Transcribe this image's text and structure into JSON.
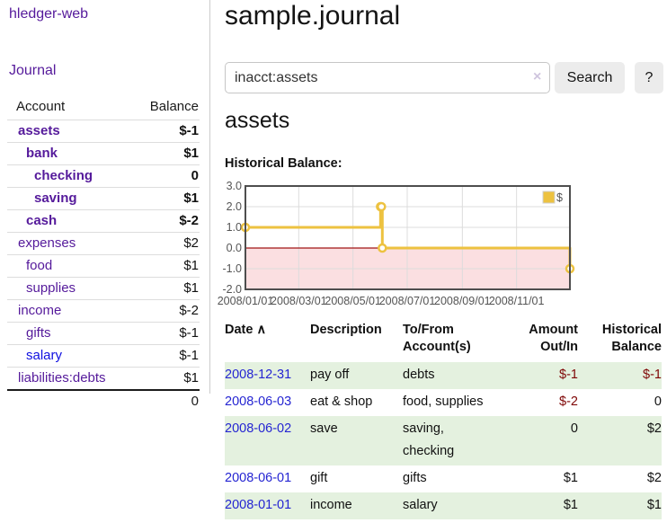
{
  "colors": {
    "link_purple": "#551a9b",
    "link_blue": "#0f0fe0",
    "date_blue": "#2525d2",
    "negative_red": "#7f0606",
    "negative_faded": "#b97575",
    "row_green": "#e4f1df",
    "series_gold": "#edc240",
    "negative_area_pink": "#fbdfe1",
    "zero_line_red": "#a01515",
    "grid_gray": "#dcdcdc",
    "chart_border": "#4e4e4e",
    "button_gray": "#ececec"
  },
  "sidebar": {
    "brand": "hledger-web",
    "journal_link": "Journal",
    "table": {
      "account_header": "Account",
      "balance_header": "Balance",
      "rows": [
        {
          "label": "assets",
          "indent": 1,
          "bold": true,
          "balance": "$-1",
          "balance_class": "neg"
        },
        {
          "label": "bank",
          "indent": 2,
          "bold": true,
          "balance": "$1",
          "balance_class": ""
        },
        {
          "label": "checking",
          "indent": 3,
          "bold": true,
          "balance": "0",
          "balance_class": ""
        },
        {
          "label": "saving",
          "indent": 3,
          "bold": true,
          "balance": "$1",
          "balance_class": ""
        },
        {
          "label": "cash",
          "indent": 2,
          "bold": true,
          "balance": "$-2",
          "balance_class": "neg"
        },
        {
          "label": "expenses",
          "indent": 1,
          "bold": false,
          "balance": "$2",
          "balance_class": ""
        },
        {
          "label": "food",
          "indent": 2,
          "bold": false,
          "balance": "$1",
          "balance_class": ""
        },
        {
          "label": "supplies",
          "indent": 2,
          "bold": false,
          "balance": "$1",
          "balance_class": ""
        },
        {
          "label": "income",
          "indent": 1,
          "bold": false,
          "balance": "$-2",
          "balance_class": "neg-faded"
        },
        {
          "label": "gifts",
          "indent": 2,
          "bold": false,
          "balance": "$-1",
          "balance_class": "neg-faded"
        },
        {
          "label": "salary",
          "indent": 2,
          "bold": false,
          "balance": "$-1",
          "balance_class": "neg-faded",
          "link_class": "blue"
        },
        {
          "label": "liabilities:debts",
          "indent": 1,
          "bold": false,
          "balance": "$1",
          "balance_class": ""
        }
      ],
      "total": "0"
    }
  },
  "main": {
    "title": "sample.journal",
    "search": {
      "value": "inacct:assets",
      "clear_icon": "×",
      "button_label": "Search",
      "help_label": "?"
    },
    "account_heading": "assets"
  },
  "chart_data": {
    "type": "line",
    "step": true,
    "title": "Historical Balance:",
    "legend": {
      "label": "$",
      "position": "top-right"
    },
    "ylim": [
      -2,
      3
    ],
    "yticks": [
      {
        "v": 3,
        "label": "3.0"
      },
      {
        "v": 2,
        "label": "2.0"
      },
      {
        "v": 1,
        "label": "1.0"
      },
      {
        "v": 0,
        "label": "0.0"
      },
      {
        "v": -1,
        "label": "-1.0"
      },
      {
        "v": -2,
        "label": "-2.0"
      }
    ],
    "x_domain_days": [
      0,
      365
    ],
    "xticks": [
      {
        "day": 0,
        "label": "2008/01/01"
      },
      {
        "day": 60,
        "label": "2008/03/01"
      },
      {
        "day": 121,
        "label": "2008/05/01"
      },
      {
        "day": 182,
        "label": "2008/07/01"
      },
      {
        "day": 244,
        "label": "2008/09/01"
      },
      {
        "day": 305,
        "label": "2008/11/01"
      }
    ],
    "series": [
      {
        "name": "$",
        "color": "#edc240",
        "points": [
          {
            "date": "2008-01-01",
            "day": 0,
            "value": 1
          },
          {
            "date": "2008-06-01",
            "day": 152,
            "value": 2
          },
          {
            "date": "2008-06-02",
            "day": 153,
            "value": 2
          },
          {
            "date": "2008-06-03",
            "day": 154,
            "value": 0
          },
          {
            "date": "2008-12-31",
            "day": 365,
            "value": -1
          }
        ]
      }
    ]
  },
  "transactions": {
    "headers": {
      "date": "Date",
      "sort_icon": "∧",
      "description": "Description",
      "tofrom_line1": "To/From",
      "tofrom_line2": "Account(s)",
      "amount_line1": "Amount",
      "amount_line2": "Out/In",
      "balance_line1": "Historical",
      "balance_line2": "Balance"
    },
    "rows": [
      {
        "date": "2008-12-31",
        "description": "pay off",
        "accounts": "debts",
        "amount": "$-1",
        "amount_negative": true,
        "balance": "$-1",
        "balance_negative": true
      },
      {
        "date": "2008-06-03",
        "description": "eat & shop",
        "accounts": "food, supplies",
        "amount": "$-2",
        "amount_negative": true,
        "balance": "0",
        "balance_negative": false
      },
      {
        "date": "2008-06-02",
        "description": "save",
        "accounts": "saving, checking",
        "amount": "0",
        "amount_negative": false,
        "balance": "$2",
        "balance_negative": false
      },
      {
        "date": "2008-06-01",
        "description": "gift",
        "accounts": "gifts",
        "amount": "$1",
        "amount_negative": false,
        "balance": "$2",
        "balance_negative": false
      },
      {
        "date": "2008-01-01",
        "description": "income",
        "accounts": "salary",
        "amount": "$1",
        "amount_negative": false,
        "balance": "$1",
        "balance_negative": false
      }
    ]
  }
}
